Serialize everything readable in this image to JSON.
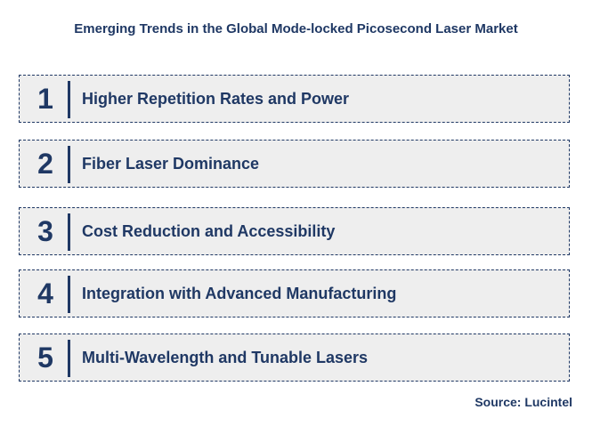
{
  "title": "Emerging Trends in the Global Mode-locked Picosecond Laser Market",
  "trends": [
    {
      "number": "1",
      "label": "Higher Repetition Rates and Power"
    },
    {
      "number": "2",
      "label": "Fiber Laser Dominance"
    },
    {
      "number": "3",
      "label": "Cost Reduction and Accessibility"
    },
    {
      "number": "4",
      "label": "Integration with Advanced Manufacturing"
    },
    {
      "number": "5",
      "label": "Multi-Wavelength and Tunable Lasers"
    }
  ],
  "source": "Source: Lucintel",
  "colors": {
    "text": "#1f3864",
    "box_fill": "#eeeeee",
    "box_border": "#1f3864"
  }
}
